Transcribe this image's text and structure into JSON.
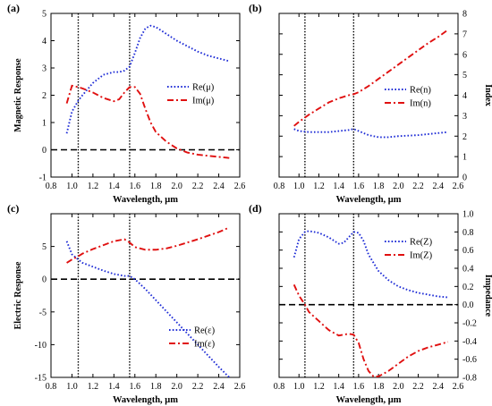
{
  "chart_data": [
    {
      "panel_label": "(a)",
      "type": "line",
      "xlabel": "Wavelength, μm",
      "ylabel": "Magnetic Response",
      "ylabel_side": "left",
      "xlim": [
        0.8,
        2.6
      ],
      "ylim": [
        -1,
        5
      ],
      "xticks": [
        "0.8",
        "1.0",
        "1.2",
        "1.4",
        "1.6",
        "1.8",
        "2.0",
        "2.2",
        "2.4",
        "2.6"
      ],
      "yticks": [
        "-1",
        "0",
        "1",
        "2",
        "3",
        "4",
        "5"
      ],
      "ytick_values": [
        -1,
        0,
        1,
        2,
        3,
        4,
        5
      ],
      "vlines": [
        1.06,
        1.55
      ],
      "hline": 0,
      "legend_position": "center-right",
      "series": [
        {
          "name": "Re(μ)",
          "color": "#1f2dd6",
          "dash": "dotted",
          "x": [
            0.95,
            1.0,
            1.06,
            1.1,
            1.2,
            1.3,
            1.4,
            1.45,
            1.5,
            1.55,
            1.6,
            1.65,
            1.7,
            1.75,
            1.8,
            1.9,
            2.0,
            2.1,
            2.2,
            2.3,
            2.4,
            2.5
          ],
          "y": [
            0.6,
            1.4,
            1.8,
            2.0,
            2.45,
            2.75,
            2.85,
            2.85,
            2.9,
            3.05,
            3.55,
            4.1,
            4.45,
            4.55,
            4.5,
            4.25,
            4.0,
            3.8,
            3.6,
            3.45,
            3.35,
            3.25
          ]
        },
        {
          "name": "Im(μ)",
          "color": "#e01010",
          "dash": "dashdot",
          "x": [
            0.95,
            1.0,
            1.06,
            1.1,
            1.2,
            1.3,
            1.4,
            1.45,
            1.5,
            1.55,
            1.6,
            1.65,
            1.7,
            1.75,
            1.8,
            1.9,
            2.0,
            2.1,
            2.2,
            2.3,
            2.4,
            2.5
          ],
          "y": [
            1.7,
            2.35,
            2.3,
            2.25,
            2.1,
            1.9,
            1.78,
            1.85,
            2.1,
            2.3,
            2.3,
            2.05,
            1.5,
            1.0,
            0.65,
            0.3,
            0.05,
            -0.1,
            -0.18,
            -0.22,
            -0.26,
            -0.3
          ]
        }
      ]
    },
    {
      "panel_label": "(b)",
      "type": "line",
      "xlabel": "Wavelength, μm",
      "ylabel": "Index",
      "ylabel_side": "right",
      "xlim": [
        0.8,
        2.6
      ],
      "ylim": [
        0,
        8
      ],
      "xticks": [
        "0.8",
        "1.0",
        "1.2",
        "1.4",
        "1.6",
        "1.8",
        "2.0",
        "2.2",
        "2.4",
        "2.6"
      ],
      "yticks": [
        "0",
        "1",
        "2",
        "3",
        "4",
        "5",
        "6",
        "7",
        "8"
      ],
      "ytick_values": [
        0,
        1,
        2,
        3,
        4,
        5,
        6,
        7,
        8
      ],
      "vlines": [
        1.06,
        1.55
      ],
      "legend_position": "center-right",
      "series": [
        {
          "name": "Re(n)",
          "color": "#1f2dd6",
          "dash": "dotted",
          "x": [
            0.95,
            1.0,
            1.1,
            1.2,
            1.3,
            1.4,
            1.5,
            1.55,
            1.6,
            1.7,
            1.8,
            1.9,
            2.0,
            2.2,
            2.4,
            2.5
          ],
          "y": [
            2.35,
            2.25,
            2.2,
            2.2,
            2.2,
            2.25,
            2.3,
            2.35,
            2.25,
            2.05,
            1.95,
            1.95,
            2.0,
            2.05,
            2.15,
            2.2
          ]
        },
        {
          "name": "Im(n)",
          "color": "#e01010",
          "dash": "dashdot",
          "x": [
            0.95,
            1.0,
            1.1,
            1.2,
            1.3,
            1.4,
            1.5,
            1.55,
            1.6,
            1.7,
            1.8,
            1.9,
            2.0,
            2.1,
            2.2,
            2.3,
            2.4,
            2.5
          ],
          "y": [
            2.5,
            2.7,
            3.05,
            3.35,
            3.65,
            3.85,
            4.0,
            4.05,
            4.15,
            4.45,
            4.8,
            5.15,
            5.5,
            5.85,
            6.2,
            6.55,
            6.85,
            7.2
          ]
        }
      ]
    },
    {
      "panel_label": "(c)",
      "type": "line",
      "xlabel": "Wavelength, μm",
      "ylabel": "Electric Response",
      "ylabel_side": "left",
      "xlim": [
        0.8,
        2.6
      ],
      "ylim": [
        -15,
        10
      ],
      "xticks": [
        "0.8",
        "1.0",
        "1.2",
        "1.4",
        "1.6",
        "1.8",
        "2.0",
        "2.2",
        "2.4",
        "2.6"
      ],
      "yticks": [
        "-15",
        "-10",
        "-5",
        "0",
        "5"
      ],
      "ytick_values": [
        -15,
        -10,
        -5,
        0,
        5
      ],
      "vlines": [
        1.06,
        1.55
      ],
      "hline": 0,
      "legend_position": "bottom-right",
      "series": [
        {
          "name": "Re(ε)",
          "color": "#1f2dd6",
          "dash": "dotted",
          "x": [
            0.95,
            1.0,
            1.06,
            1.1,
            1.2,
            1.3,
            1.4,
            1.5,
            1.55,
            1.6,
            1.7,
            1.8,
            1.9,
            2.0,
            2.1,
            2.2,
            2.3,
            2.4,
            2.5
          ],
          "y": [
            5.8,
            3.8,
            3.0,
            2.5,
            1.9,
            1.3,
            0.8,
            0.5,
            0.5,
            0.0,
            -1.5,
            -3.2,
            -4.9,
            -6.6,
            -8.3,
            -10.0,
            -11.7,
            -13.4,
            -15.0
          ]
        },
        {
          "name": "Im(ε)",
          "color": "#e01010",
          "dash": "dashdot",
          "x": [
            0.95,
            1.0,
            1.06,
            1.1,
            1.2,
            1.3,
            1.4,
            1.5,
            1.55,
            1.6,
            1.7,
            1.8,
            1.9,
            2.0,
            2.2,
            2.4,
            2.5
          ],
          "y": [
            2.5,
            3.0,
            3.5,
            3.9,
            4.6,
            5.2,
            5.8,
            6.1,
            5.6,
            4.9,
            4.5,
            4.5,
            4.7,
            5.1,
            6.1,
            7.2,
            7.9
          ]
        }
      ]
    },
    {
      "panel_label": "(d)",
      "type": "line",
      "xlabel": "Wavelength, μm",
      "ylabel": "Impedance",
      "ylabel_side": "right",
      "xlim": [
        0.8,
        2.6
      ],
      "ylim": [
        -0.8,
        1.0
      ],
      "xticks": [
        "0.8",
        "1.0",
        "1.2",
        "1.4",
        "1.6",
        "1.8",
        "2.0",
        "2.2",
        "2.4",
        "2.6"
      ],
      "yticks": [
        "-0.8",
        "-0.6",
        "-0.4",
        "-0.2",
        "0.0",
        "0.2",
        "0.4",
        "0.6",
        "0.8",
        "1.0"
      ],
      "ytick_values": [
        -0.8,
        -0.6,
        -0.4,
        -0.2,
        0.0,
        0.2,
        0.4,
        0.6,
        0.8,
        1.0
      ],
      "vlines": [
        1.06,
        1.55
      ],
      "hline": 0,
      "legend_position": "top-right",
      "series": [
        {
          "name": "Re(Z)",
          "color": "#1f2dd6",
          "dash": "dotted",
          "x": [
            0.95,
            1.0,
            1.06,
            1.1,
            1.2,
            1.3,
            1.4,
            1.45,
            1.5,
            1.55,
            1.6,
            1.65,
            1.7,
            1.8,
            1.9,
            2.0,
            2.1,
            2.2,
            2.3,
            2.4,
            2.5
          ],
          "y": [
            0.52,
            0.72,
            0.8,
            0.81,
            0.79,
            0.74,
            0.67,
            0.68,
            0.74,
            0.8,
            0.79,
            0.7,
            0.55,
            0.37,
            0.27,
            0.2,
            0.16,
            0.13,
            0.11,
            0.09,
            0.08
          ]
        },
        {
          "name": "Im(Z)",
          "color": "#e01010",
          "dash": "dashdot",
          "x": [
            0.95,
            1.0,
            1.06,
            1.1,
            1.2,
            1.3,
            1.4,
            1.45,
            1.5,
            1.55,
            1.6,
            1.65,
            1.7,
            1.75,
            1.8,
            1.9,
            2.0,
            2.1,
            2.2,
            2.3,
            2.4,
            2.5
          ],
          "y": [
            0.22,
            0.1,
            0.0,
            -0.08,
            -0.18,
            -0.28,
            -0.34,
            -0.33,
            -0.32,
            -0.33,
            -0.42,
            -0.6,
            -0.73,
            -0.79,
            -0.79,
            -0.73,
            -0.65,
            -0.57,
            -0.51,
            -0.47,
            -0.44,
            -0.41
          ]
        }
      ]
    }
  ]
}
